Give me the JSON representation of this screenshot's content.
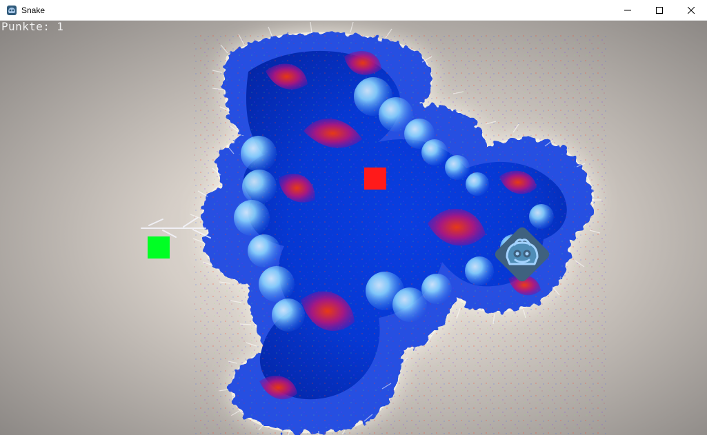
{
  "window": {
    "title": "Snake",
    "icons": {
      "app": "game-engine-icon",
      "minimize": "minimize-icon",
      "maximize": "maximize-icon",
      "close": "close-icon"
    }
  },
  "game": {
    "score_text": "Punkte: 1",
    "colors": {
      "snake": "#00ff24",
      "food": "#ff1a1a",
      "sprite_fill": "#3f617f",
      "fractal_core": "#0a3ee0",
      "fractal_edge": "#f8f3e7",
      "background": "#908c89"
    },
    "objects": [
      {
        "name": "snake-head",
        "color": "#00ff24"
      },
      {
        "name": "food",
        "color": "#ff1a1a"
      },
      {
        "name": "game-sprite",
        "icon": "game-engine-icon"
      }
    ]
  }
}
